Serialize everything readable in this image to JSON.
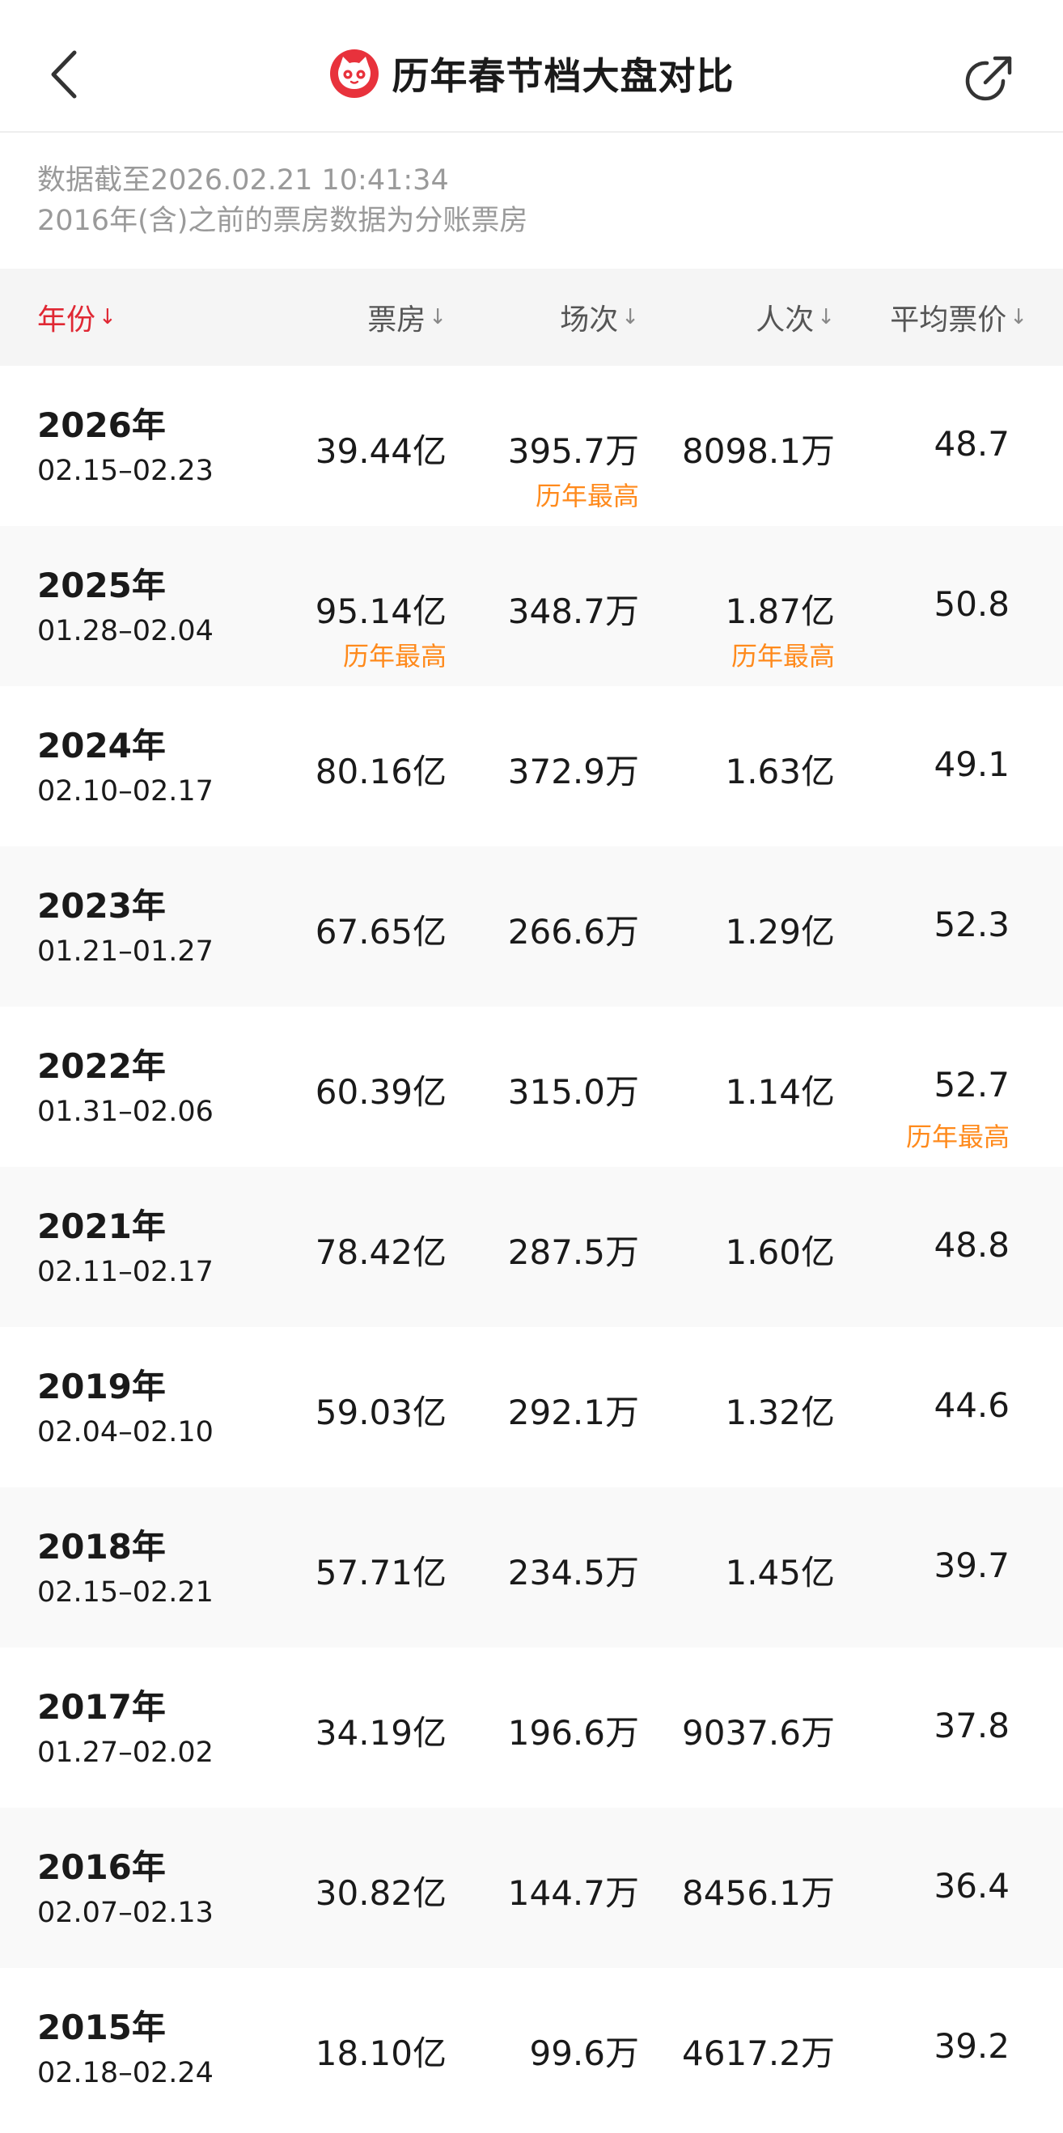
{
  "header": {
    "title": "历年春节档大盘对比",
    "back_icon": "chevron-left-icon",
    "share_icon": "share-icon",
    "logo_icon": "cat-logo-icon"
  },
  "info": {
    "line1": "数据截至2026.02.21 10:41:34",
    "line2": "2016年(含)之前的票房数据为分账票房"
  },
  "columns": [
    {
      "label": "年份",
      "sort": "↓"
    },
    {
      "label": "票房",
      "sort": "↓"
    },
    {
      "label": "场次",
      "sort": "↓"
    },
    {
      "label": "人次",
      "sort": "↓"
    },
    {
      "label": "平均票价",
      "sort": "↓"
    }
  ],
  "badge_text": "历年最高",
  "colors": {
    "accent": "#e02834",
    "badge": "#ff8a1c"
  },
  "rows": [
    {
      "year": "2026年",
      "dates": "02.15–02.23",
      "box_office": "39.44亿",
      "screenings": "395.7万",
      "admissions": "8098.1万",
      "avg_price": "48.7",
      "badge_box_office": "",
      "badge_screenings": "历年最高",
      "badge_admissions": "",
      "badge_avg_price": ""
    },
    {
      "year": "2025年",
      "dates": "01.28–02.04",
      "box_office": "95.14亿",
      "screenings": "348.7万",
      "admissions": "1.87亿",
      "avg_price": "50.8",
      "badge_box_office": "历年最高",
      "badge_screenings": "",
      "badge_admissions": "历年最高",
      "badge_avg_price": ""
    },
    {
      "year": "2024年",
      "dates": "02.10–02.17",
      "box_office": "80.16亿",
      "screenings": "372.9万",
      "admissions": "1.63亿",
      "avg_price": "49.1",
      "badge_box_office": "",
      "badge_screenings": "",
      "badge_admissions": "",
      "badge_avg_price": ""
    },
    {
      "year": "2023年",
      "dates": "01.21–01.27",
      "box_office": "67.65亿",
      "screenings": "266.6万",
      "admissions": "1.29亿",
      "avg_price": "52.3",
      "badge_box_office": "",
      "badge_screenings": "",
      "badge_admissions": "",
      "badge_avg_price": ""
    },
    {
      "year": "2022年",
      "dates": "01.31–02.06",
      "box_office": "60.39亿",
      "screenings": "315.0万",
      "admissions": "1.14亿",
      "avg_price": "52.7",
      "badge_box_office": "",
      "badge_screenings": "",
      "badge_admissions": "",
      "badge_avg_price": "历年最高"
    },
    {
      "year": "2021年",
      "dates": "02.11–02.17",
      "box_office": "78.42亿",
      "screenings": "287.5万",
      "admissions": "1.60亿",
      "avg_price": "48.8",
      "badge_box_office": "",
      "badge_screenings": "",
      "badge_admissions": "",
      "badge_avg_price": ""
    },
    {
      "year": "2019年",
      "dates": "02.04–02.10",
      "box_office": "59.03亿",
      "screenings": "292.1万",
      "admissions": "1.32亿",
      "avg_price": "44.6",
      "badge_box_office": "",
      "badge_screenings": "",
      "badge_admissions": "",
      "badge_avg_price": ""
    },
    {
      "year": "2018年",
      "dates": "02.15–02.21",
      "box_office": "57.71亿",
      "screenings": "234.5万",
      "admissions": "1.45亿",
      "avg_price": "39.7",
      "badge_box_office": "",
      "badge_screenings": "",
      "badge_admissions": "",
      "badge_avg_price": ""
    },
    {
      "year": "2017年",
      "dates": "01.27–02.02",
      "box_office": "34.19亿",
      "screenings": "196.6万",
      "admissions": "9037.6万",
      "avg_price": "37.8",
      "badge_box_office": "",
      "badge_screenings": "",
      "badge_admissions": "",
      "badge_avg_price": ""
    },
    {
      "year": "2016年",
      "dates": "02.07–02.13",
      "box_office": "30.82亿",
      "screenings": "144.7万",
      "admissions": "8456.1万",
      "avg_price": "36.4",
      "badge_box_office": "",
      "badge_screenings": "",
      "badge_admissions": "",
      "badge_avg_price": ""
    },
    {
      "year": "2015年",
      "dates": "02.18–02.24",
      "box_office": "18.10亿",
      "screenings": "99.6万",
      "admissions": "4617.2万",
      "avg_price": "39.2",
      "badge_box_office": "",
      "badge_screenings": "",
      "badge_admissions": "",
      "badge_avg_price": ""
    }
  ]
}
